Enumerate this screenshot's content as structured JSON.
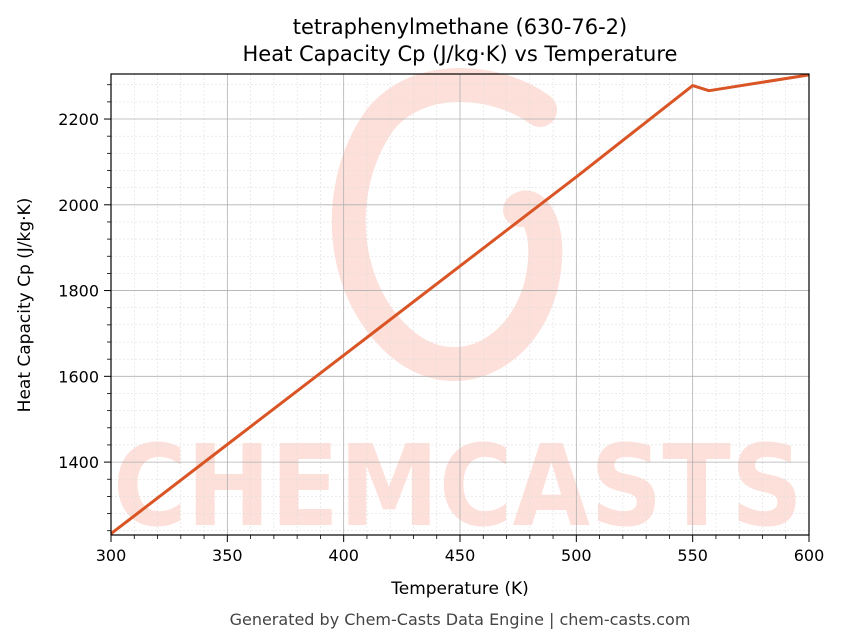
{
  "chart_data": {
    "type": "line",
    "title_line1": "tetraphenylmethane (630-76-2)",
    "title_line2": "Heat Capacity Cp (J/kg·K) vs Temperature",
    "xlabel": "Temperature (K)",
    "ylabel": "Heat Capacity Cp (J/kg·K)",
    "xlim": [
      300,
      600
    ],
    "ylim": [
      1230,
      2305
    ],
    "xticks": [
      300,
      350,
      400,
      450,
      500,
      550,
      600
    ],
    "yticks": [
      1400,
      1600,
      1800,
      2000,
      2200
    ],
    "grid": true,
    "series": [
      {
        "color": "#d95525",
        "x": [
          300,
          350,
          400,
          450,
          500,
          550,
          557,
          600
        ],
        "y": [
          1233,
          1441,
          1649,
          1857,
          2065,
          2278,
          2266,
          2303
        ]
      }
    ]
  },
  "watermark": {
    "text": "CHEMCASTS",
    "color": "#fde0da"
  },
  "footer": "Generated by Chem-Casts Data Engine | chem-casts.com"
}
